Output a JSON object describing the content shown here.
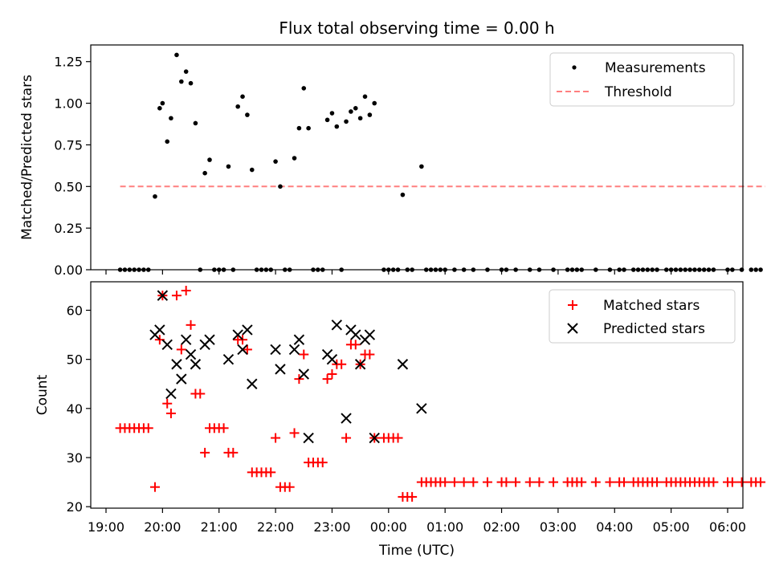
{
  "chart_data": [
    {
      "type": "scatter",
      "title": "Flux total observing time = 0.00 h",
      "xlabel": "",
      "ylabel": "Matched/Predicted stars",
      "xlim": [
        "19:00",
        "06:00"
      ],
      "ylim": [
        0,
        1.35
      ],
      "yticks": [
        "0.00",
        "0.25",
        "0.50",
        "0.75",
        "1.00",
        "1.25"
      ],
      "ytick_values": [
        0,
        0.25,
        0.5,
        0.75,
        1.0,
        1.25
      ],
      "legend_position": "top-right",
      "series": [
        {
          "name": "Measurements",
          "style": "dot",
          "color": "#000000",
          "points": [
            [
              "19:15",
              0
            ],
            [
              "19:20",
              0
            ],
            [
              "19:25",
              0
            ],
            [
              "19:30",
              0
            ],
            [
              "19:35",
              0
            ],
            [
              "19:40",
              0
            ],
            [
              "19:45",
              0
            ],
            [
              "19:52",
              0.44
            ],
            [
              "19:57",
              0.97
            ],
            [
              "20:00",
              1.0
            ],
            [
              "20:05",
              0.77
            ],
            [
              "20:09",
              0.91
            ],
            [
              "20:15",
              1.29
            ],
            [
              "20:20",
              1.13
            ],
            [
              "20:25",
              1.19
            ],
            [
              "20:30",
              1.12
            ],
            [
              "20:35",
              0.88
            ],
            [
              "20:40",
              0
            ],
            [
              "20:45",
              0.58
            ],
            [
              "20:50",
              0.66
            ],
            [
              "20:55",
              0
            ],
            [
              "21:00",
              0
            ],
            [
              "21:05",
              0
            ],
            [
              "21:10",
              0.62
            ],
            [
              "21:15",
              0
            ],
            [
              "21:20",
              0.98
            ],
            [
              "21:25",
              1.04
            ],
            [
              "21:30",
              0.93
            ],
            [
              "21:35",
              0.6
            ],
            [
              "21:40",
              0
            ],
            [
              "21:45",
              0
            ],
            [
              "21:50",
              0
            ],
            [
              "21:55",
              0
            ],
            [
              "22:00",
              0.65
            ],
            [
              "22:05",
              0.5
            ],
            [
              "22:10",
              0
            ],
            [
              "22:15",
              0
            ],
            [
              "22:20",
              0.67
            ],
            [
              "22:25",
              0.85
            ],
            [
              "22:30",
              1.09
            ],
            [
              "22:35",
              0.85
            ],
            [
              "22:40",
              0
            ],
            [
              "22:45",
              0
            ],
            [
              "22:50",
              0
            ],
            [
              "22:55",
              0.9
            ],
            [
              "23:00",
              0.94
            ],
            [
              "23:05",
              0.86
            ],
            [
              "23:10",
              0
            ],
            [
              "23:15",
              0.89
            ],
            [
              "23:20",
              0.95
            ],
            [
              "23:25",
              0.97
            ],
            [
              "23:30",
              0.91
            ],
            [
              "23:35",
              1.04
            ],
            [
              "23:40",
              0.93
            ],
            [
              "23:45",
              1.0
            ],
            [
              "23:55",
              0
            ],
            [
              "24:00",
              0
            ],
            [
              "24:05",
              0
            ],
            [
              "24:10",
              0
            ],
            [
              "24:15",
              0.45
            ],
            [
              "24:20",
              0
            ],
            [
              "24:25",
              0
            ],
            [
              "24:35",
              0.62
            ],
            [
              "24:40",
              0
            ],
            [
              "24:45",
              0
            ],
            [
              "24:50",
              0
            ],
            [
              "24:55",
              0
            ],
            [
              "25:00",
              0
            ],
            [
              "25:10",
              0
            ],
            [
              "25:20",
              0
            ],
            [
              "25:30",
              0
            ],
            [
              "25:45",
              0
            ],
            [
              "26:00",
              0
            ],
            [
              "26:05",
              0
            ],
            [
              "26:15",
              0
            ],
            [
              "26:30",
              0
            ],
            [
              "26:40",
              0
            ],
            [
              "26:55",
              0
            ],
            [
              "27:10",
              0
            ],
            [
              "27:15",
              0
            ],
            [
              "27:20",
              0
            ],
            [
              "27:25",
              0
            ],
            [
              "27:40",
              0
            ],
            [
              "27:55",
              0
            ],
            [
              "28:05",
              0
            ],
            [
              "28:10",
              0
            ],
            [
              "28:20",
              0
            ],
            [
              "28:25",
              0
            ],
            [
              "28:30",
              0
            ],
            [
              "28:35",
              0
            ],
            [
              "28:40",
              0
            ],
            [
              "28:45",
              0
            ],
            [
              "28:55",
              0
            ],
            [
              "29:00",
              0
            ],
            [
              "29:05",
              0
            ],
            [
              "29:10",
              0
            ],
            [
              "29:15",
              0
            ],
            [
              "29:20",
              0
            ],
            [
              "29:25",
              0
            ],
            [
              "29:30",
              0
            ],
            [
              "29:35",
              0
            ],
            [
              "29:40",
              0
            ],
            [
              "29:45",
              0
            ],
            [
              "30:00",
              0
            ],
            [
              "30:05",
              0
            ],
            [
              "30:15",
              0
            ],
            [
              "30:25",
              0
            ],
            [
              "30:30",
              0
            ],
            [
              "30:35",
              0
            ]
          ]
        },
        {
          "name": "Threshold",
          "style": "dashed-line",
          "color": "#ff7f7f",
          "points": [
            [
              "19:15",
              0.5
            ],
            [
              "30:40",
              0.5
            ]
          ]
        }
      ]
    },
    {
      "type": "scatter",
      "title": "",
      "xlabel": "Time (UTC)",
      "ylabel": "Count",
      "xlim": [
        "19:00",
        "06:00"
      ],
      "ylim": [
        20,
        66
      ],
      "yticks": [
        "20",
        "30",
        "40",
        "50",
        "60"
      ],
      "ytick_values": [
        20,
        30,
        40,
        50,
        60
      ],
      "xticks": [
        "19:00",
        "20:00",
        "21:00",
        "22:00",
        "23:00",
        "00:00",
        "01:00",
        "02:00",
        "03:00",
        "04:00",
        "05:00",
        "06:00"
      ],
      "legend_position": "top-right",
      "series": [
        {
          "name": "Matched stars",
          "style": "plus",
          "color": "#ff0000",
          "points": [
            [
              "19:15",
              36
            ],
            [
              "19:20",
              36
            ],
            [
              "19:25",
              36
            ],
            [
              "19:30",
              36
            ],
            [
              "19:35",
              36
            ],
            [
              "19:40",
              36
            ],
            [
              "19:45",
              36
            ],
            [
              "19:52",
              24
            ],
            [
              "19:57",
              54
            ],
            [
              "20:00",
              63
            ],
            [
              "20:05",
              41
            ],
            [
              "20:09",
              39
            ],
            [
              "20:15",
              63
            ],
            [
              "20:20",
              52
            ],
            [
              "20:25",
              64
            ],
            [
              "20:30",
              57
            ],
            [
              "20:35",
              43
            ],
            [
              "20:40",
              43
            ],
            [
              "20:45",
              31
            ],
            [
              "20:50",
              36
            ],
            [
              "20:55",
              36
            ],
            [
              "21:00",
              36
            ],
            [
              "21:05",
              36
            ],
            [
              "21:10",
              31
            ],
            [
              "21:15",
              31
            ],
            [
              "21:20",
              54
            ],
            [
              "21:25",
              54
            ],
            [
              "21:30",
              52
            ],
            [
              "21:35",
              27
            ],
            [
              "21:40",
              27
            ],
            [
              "21:45",
              27
            ],
            [
              "21:50",
              27
            ],
            [
              "21:55",
              27
            ],
            [
              "22:00",
              34
            ],
            [
              "22:05",
              24
            ],
            [
              "22:10",
              24
            ],
            [
              "22:15",
              24
            ],
            [
              "22:20",
              35
            ],
            [
              "22:25",
              46
            ],
            [
              "22:30",
              51
            ],
            [
              "22:35",
              29
            ],
            [
              "22:40",
              29
            ],
            [
              "22:45",
              29
            ],
            [
              "22:50",
              29
            ],
            [
              "22:55",
              46
            ],
            [
              "23:00",
              47
            ],
            [
              "23:05",
              49
            ],
            [
              "23:10",
              49
            ],
            [
              "23:15",
              34
            ],
            [
              "23:20",
              53
            ],
            [
              "23:25",
              53
            ],
            [
              "23:30",
              49
            ],
            [
              "23:35",
              51
            ],
            [
              "23:40",
              51
            ],
            [
              "23:45",
              34
            ],
            [
              "23:55",
              34
            ],
            [
              "24:00",
              34
            ],
            [
              "24:05",
              34
            ],
            [
              "24:10",
              34
            ],
            [
              "24:15",
              22
            ],
            [
              "24:20",
              22
            ],
            [
              "24:25",
              22
            ],
            [
              "24:35",
              25
            ],
            [
              "24:40",
              25
            ],
            [
              "24:45",
              25
            ],
            [
              "24:50",
              25
            ],
            [
              "24:55",
              25
            ],
            [
              "25:00",
              25
            ],
            [
              "25:10",
              25
            ],
            [
              "25:20",
              25
            ],
            [
              "25:30",
              25
            ],
            [
              "25:45",
              25
            ],
            [
              "26:00",
              25
            ],
            [
              "26:05",
              25
            ],
            [
              "26:15",
              25
            ],
            [
              "26:30",
              25
            ],
            [
              "26:40",
              25
            ],
            [
              "26:55",
              25
            ],
            [
              "27:10",
              25
            ],
            [
              "27:15",
              25
            ],
            [
              "27:20",
              25
            ],
            [
              "27:25",
              25
            ],
            [
              "27:40",
              25
            ],
            [
              "27:55",
              25
            ],
            [
              "28:05",
              25
            ],
            [
              "28:10",
              25
            ],
            [
              "28:20",
              25
            ],
            [
              "28:25",
              25
            ],
            [
              "28:30",
              25
            ],
            [
              "28:35",
              25
            ],
            [
              "28:40",
              25
            ],
            [
              "28:45",
              25
            ],
            [
              "28:55",
              25
            ],
            [
              "29:00",
              25
            ],
            [
              "29:05",
              25
            ],
            [
              "29:10",
              25
            ],
            [
              "29:15",
              25
            ],
            [
              "29:20",
              25
            ],
            [
              "29:25",
              25
            ],
            [
              "29:30",
              25
            ],
            [
              "29:35",
              25
            ],
            [
              "29:40",
              25
            ],
            [
              "29:45",
              25
            ],
            [
              "30:00",
              25
            ],
            [
              "30:05",
              25
            ],
            [
              "30:15",
              25
            ],
            [
              "30:25",
              25
            ],
            [
              "30:30",
              25
            ],
            [
              "30:35",
              25
            ]
          ]
        },
        {
          "name": "Predicted stars",
          "style": "x",
          "color": "#000000",
          "points": [
            [
              "19:52",
              55
            ],
            [
              "19:57",
              56
            ],
            [
              "20:00",
              63
            ],
            [
              "20:05",
              53
            ],
            [
              "20:09",
              43
            ],
            [
              "20:15",
              49
            ],
            [
              "20:20",
              46
            ],
            [
              "20:25",
              54
            ],
            [
              "20:30",
              51
            ],
            [
              "20:35",
              49
            ],
            [
              "20:45",
              53
            ],
            [
              "20:50",
              54
            ],
            [
              "21:10",
              50
            ],
            [
              "21:20",
              55
            ],
            [
              "21:25",
              52
            ],
            [
              "21:30",
              56
            ],
            [
              "21:35",
              45
            ],
            [
              "22:00",
              52
            ],
            [
              "22:05",
              48
            ],
            [
              "22:20",
              52
            ],
            [
              "22:25",
              54
            ],
            [
              "22:30",
              47
            ],
            [
              "22:35",
              34
            ],
            [
              "22:55",
              51
            ],
            [
              "23:00",
              50
            ],
            [
              "23:05",
              57
            ],
            [
              "23:15",
              38
            ],
            [
              "23:20",
              56
            ],
            [
              "23:25",
              55
            ],
            [
              "23:30",
              49
            ],
            [
              "23:35",
              54
            ],
            [
              "23:40",
              55
            ],
            [
              "23:45",
              34
            ],
            [
              "24:15",
              49
            ],
            [
              "24:35",
              40
            ]
          ]
        }
      ]
    }
  ]
}
